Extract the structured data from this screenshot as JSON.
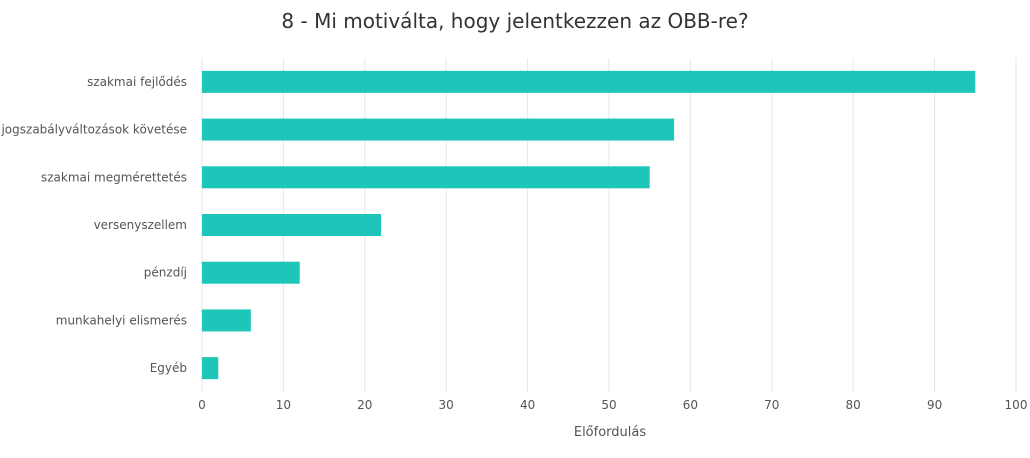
{
  "chart_data": {
    "type": "bar",
    "orientation": "horizontal",
    "title": "8 - Mi motiválta, hogy jelentkezzen az OBB-re?",
    "xlabel": "Előfordulás",
    "ylabel": "",
    "categories": [
      "szakmai fejlődés",
      "jogszabályváltozások követése",
      "szakmai megmérettetés",
      "versenyszellem",
      "pénzdíj",
      "munkahelyi elismerés",
      "Egyéb"
    ],
    "values": [
      95,
      58,
      55,
      22,
      12,
      6,
      2
    ],
    "xlim": [
      0,
      100
    ],
    "xticks": [
      "0",
      "10",
      "20",
      "30",
      "40",
      "50",
      "60",
      "70",
      "80",
      "90",
      "100"
    ],
    "grid": true,
    "legend": "none",
    "bar_color": "#1DC6B8"
  }
}
